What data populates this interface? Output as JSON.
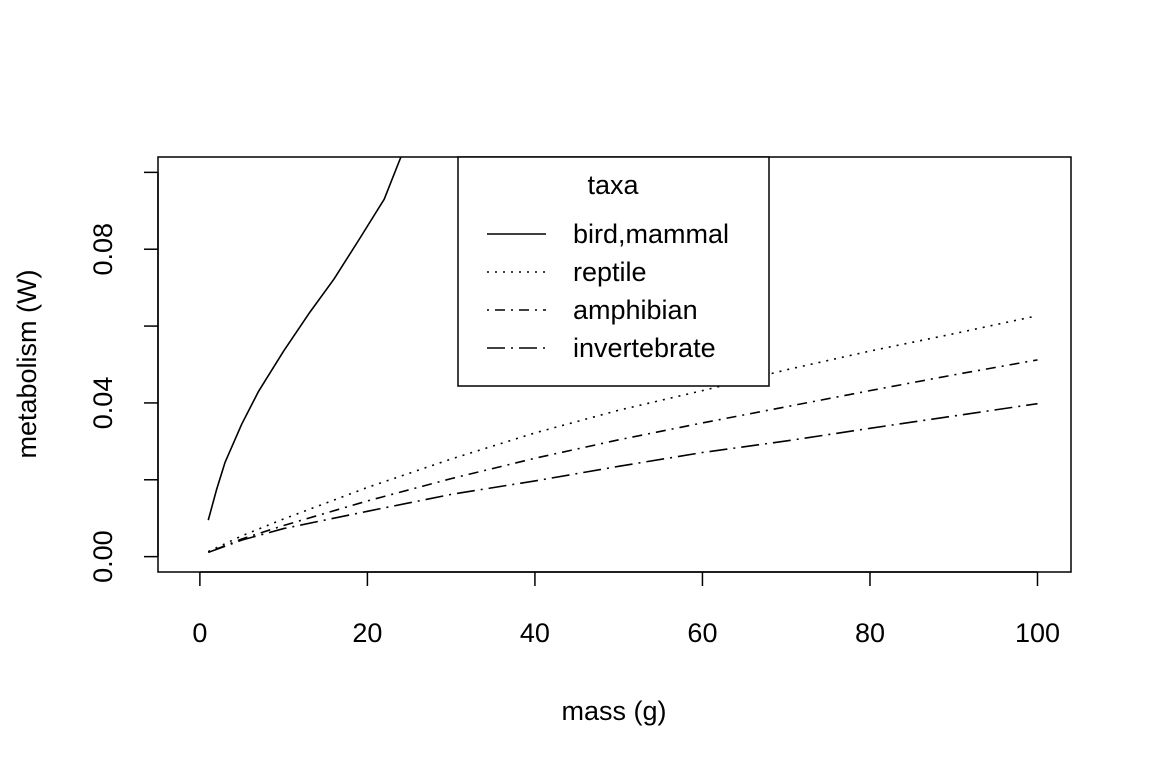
{
  "chart_data": {
    "type": "line",
    "title": "",
    "xlabel": "mass (g)",
    "ylabel": "metabolism (W)",
    "xlim": [
      -5,
      104
    ],
    "ylim": [
      -0.004,
      0.104
    ],
    "xticks": [
      0,
      20,
      40,
      60,
      80,
      100
    ],
    "xtick_labels": [
      "0",
      "20",
      "40",
      "60",
      "80",
      "100"
    ],
    "yticks": [
      0.0,
      0.02,
      0.04,
      0.06,
      0.08,
      0.1
    ],
    "ytick_labels": [
      "0.00",
      "",
      "0.04",
      "",
      "0.08",
      ""
    ],
    "grid": false,
    "legend": {
      "title": "taxa",
      "placement": "top-center",
      "entries": [
        "bird,mammal",
        "reptile",
        "amphibian",
        "invertebrate"
      ]
    },
    "series": [
      {
        "name": "bird,mammal",
        "line_style": "solid",
        "x": [
          1,
          2,
          3,
          5,
          7,
          10,
          13,
          16,
          19,
          22,
          24
        ],
        "values": [
          0.0095,
          0.0175,
          0.0245,
          0.0345,
          0.043,
          0.0535,
          0.0632,
          0.0722,
          0.0825,
          0.093,
          0.104
        ]
      },
      {
        "name": "reptile",
        "line_style": "dotted",
        "x": [
          1,
          5,
          10,
          20,
          30,
          40,
          50,
          60,
          70,
          80,
          90,
          100
        ],
        "values": [
          0.0013,
          0.0054,
          0.0098,
          0.018,
          0.0254,
          0.0322,
          0.0381,
          0.0432,
          0.0486,
          0.0535,
          0.058,
          0.0627
        ]
      },
      {
        "name": "amphibian",
        "line_style": "dashdot",
        "x": [
          1,
          5,
          10,
          20,
          30,
          40,
          50,
          60,
          70,
          80,
          90,
          100
        ],
        "values": [
          0.0011,
          0.0046,
          0.0081,
          0.0145,
          0.0203,
          0.0256,
          0.0304,
          0.0348,
          0.039,
          0.0432,
          0.0473,
          0.0512
        ]
      },
      {
        "name": "invertebrate",
        "line_style": "longdash-dot",
        "x": [
          1,
          5,
          10,
          20,
          30,
          40,
          50,
          60,
          70,
          80,
          90,
          100
        ],
        "values": [
          0.0011,
          0.0043,
          0.0073,
          0.0118,
          0.0162,
          0.0197,
          0.0235,
          0.0271,
          0.0301,
          0.0334,
          0.0366,
          0.0398
        ]
      }
    ]
  }
}
